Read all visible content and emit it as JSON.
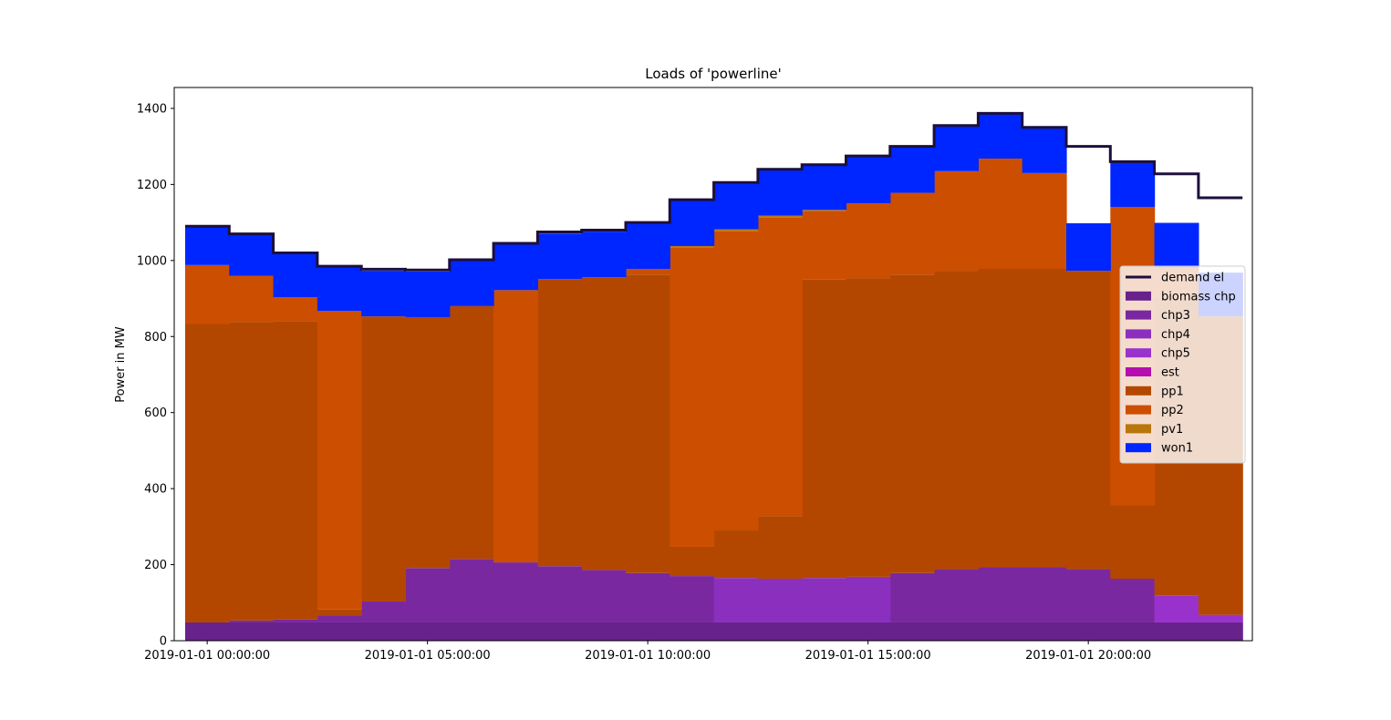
{
  "chart_data": {
    "type": "area",
    "step": "post",
    "title": "Loads of 'powerline'",
    "xlabel": "",
    "ylabel": "Power in MW",
    "ylim": [
      0,
      1455
    ],
    "yticks": [
      0,
      200,
      400,
      600,
      800,
      1000,
      1200,
      1400
    ],
    "x": [
      "2019-01-01 00:00:00",
      "2019-01-01 01:00:00",
      "2019-01-01 02:00:00",
      "2019-01-01 03:00:00",
      "2019-01-01 04:00:00",
      "2019-01-01 05:00:00",
      "2019-01-01 06:00:00",
      "2019-01-01 07:00:00",
      "2019-01-01 08:00:00",
      "2019-01-01 09:00:00",
      "2019-01-01 10:00:00",
      "2019-01-01 11:00:00",
      "2019-01-01 12:00:00",
      "2019-01-01 13:00:00",
      "2019-01-01 14:00:00",
      "2019-01-01 15:00:00",
      "2019-01-01 16:00:00",
      "2019-01-01 17:00:00",
      "2019-01-01 18:00:00",
      "2019-01-01 19:00:00",
      "2019-01-01 20:00:00",
      "2019-01-01 21:00:00",
      "2019-01-01 22:00:00",
      "2019-01-01 23:00:00"
    ],
    "xticks": [
      "2019-01-01 00:00:00",
      "2019-01-01 05:00:00",
      "2019-01-01 10:00:00",
      "2019-01-01 15:00:00",
      "2019-01-01 20:00:00"
    ],
    "grid": false,
    "legend_position": "center-right",
    "series": [
      {
        "name": "biomass chp",
        "color": "#68228b",
        "values": [
          48,
          48,
          48,
          48,
          48,
          48,
          48,
          48,
          48,
          48,
          48,
          48,
          48,
          48,
          48,
          48,
          48,
          48,
          48,
          48,
          48,
          48,
          48,
          48
        ]
      },
      {
        "name": "chp3",
        "color": "#7a28a0",
        "values": [
          0,
          5,
          8,
          18,
          55,
          143,
          167,
          158,
          148,
          138,
          130,
          122,
          0,
          0,
          0,
          0,
          130,
          140,
          145,
          145,
          140,
          115,
          0,
          0
        ]
      },
      {
        "name": "chp4",
        "color": "#8b2fbf",
        "values": [
          0,
          0,
          0,
          0,
          0,
          0,
          0,
          0,
          0,
          0,
          0,
          0,
          117,
          115,
          117,
          120,
          0,
          0,
          0,
          0,
          0,
          0,
          0,
          0
        ]
      },
      {
        "name": "chp5",
        "color": "#9932cc",
        "values": [
          0,
          0,
          0,
          0,
          0,
          0,
          0,
          0,
          0,
          0,
          0,
          0,
          0,
          0,
          0,
          0,
          0,
          0,
          0,
          0,
          0,
          0,
          70,
          20
        ]
      },
      {
        "name": "est",
        "color": "#b40eb0",
        "values": [
          0,
          0,
          0,
          0,
          0,
          0,
          0,
          0,
          0,
          0,
          0,
          0,
          0,
          0,
          0,
          0,
          0,
          0,
          0,
          0,
          0,
          0,
          0,
          0
        ]
      },
      {
        "name": "pp1",
        "color": "#b34700",
        "values": [
          785,
          785,
          785,
          16,
          750,
          660,
          665,
          0,
          755,
          770,
          785,
          77,
          125,
          165,
          785,
          785,
          785,
          785,
          785,
          785,
          785,
          193,
          785,
          785
        ]
      },
      {
        "name": "pp2",
        "color": "#cc4e00",
        "values": [
          155,
          122,
          62,
          785,
          0,
          0,
          0,
          716,
          0,
          0,
          15,
          788,
          787,
          785,
          180,
          197,
          215,
          262,
          290,
          252,
          0,
          785,
          78,
          0
        ]
      },
      {
        "name": "pv1",
        "color": "#b8760c",
        "values": [
          0,
          0,
          0,
          0,
          0,
          0,
          0,
          0,
          0,
          0,
          0,
          3,
          5,
          5,
          3,
          0,
          0,
          0,
          0,
          0,
          0,
          0,
          0,
          0
        ]
      },
      {
        "name": "won1",
        "color": "#0026ff",
        "values": [
          100,
          110,
          115,
          115,
          120,
          120,
          120,
          120,
          120,
          120,
          120,
          120,
          120,
          120,
          122,
          123,
          120,
          120,
          120,
          120,
          125,
          117,
          118,
          115
        ]
      }
    ],
    "demand": {
      "name": "demand el",
      "color": "#1c0f3d",
      "values": [
        1090,
        1070,
        1020,
        985,
        977,
        975,
        1002,
        1045,
        1075,
        1080,
        1100,
        1160,
        1205,
        1240,
        1252,
        1275,
        1300,
        1355,
        1387,
        1350,
        1300,
        1260,
        1228,
        1165
      ]
    }
  }
}
